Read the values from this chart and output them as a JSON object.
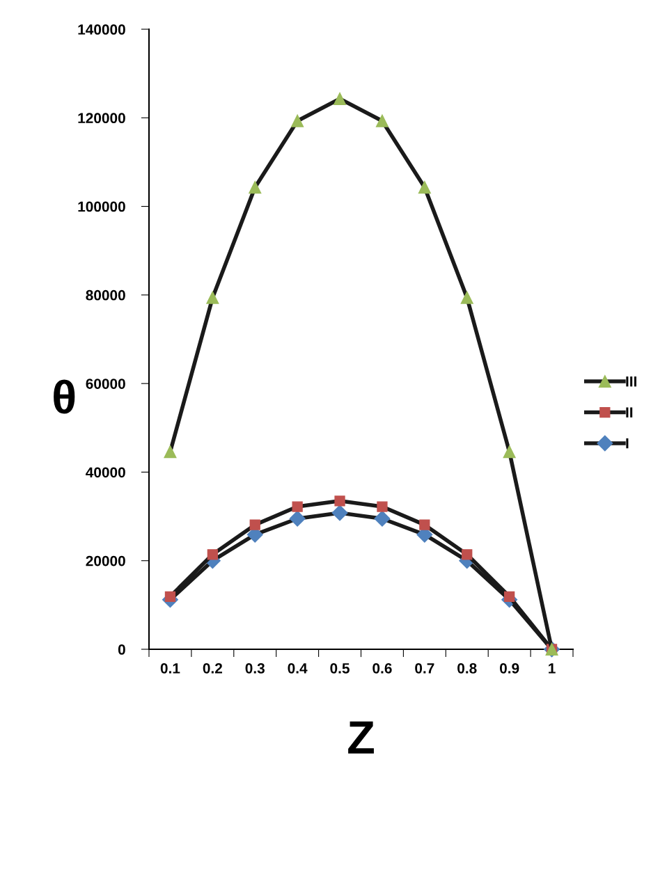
{
  "chart_data": {
    "type": "line",
    "xlabel": "Z",
    "ylabel": "θ",
    "categories": [
      "0.1",
      "0.2",
      "0.3",
      "0.4",
      "0.5",
      "0.6",
      "0.7",
      "0.8",
      "0.9",
      "1"
    ],
    "series": [
      {
        "name": "III",
        "color": "#9bbb59",
        "marker": "triangle",
        "values": [
          44600,
          79400,
          104300,
          119300,
          124300,
          119300,
          104300,
          79400,
          44600,
          0
        ]
      },
      {
        "name": "II",
        "color": "#c0504d",
        "marker": "square",
        "values": [
          11900,
          21400,
          28100,
          32200,
          33500,
          32200,
          28100,
          21400,
          11900,
          0
        ]
      },
      {
        "name": "I",
        "color": "#4f81bd",
        "marker": "diamond",
        "values": [
          11200,
          20000,
          25900,
          29500,
          30800,
          29500,
          25900,
          20000,
          11200,
          0
        ]
      }
    ],
    "ylim": [
      0,
      140000
    ],
    "yticks": [
      0,
      20000,
      40000,
      60000,
      80000,
      100000,
      120000,
      140000
    ],
    "grid": false,
    "legend": "right",
    "line_style": "solid"
  }
}
